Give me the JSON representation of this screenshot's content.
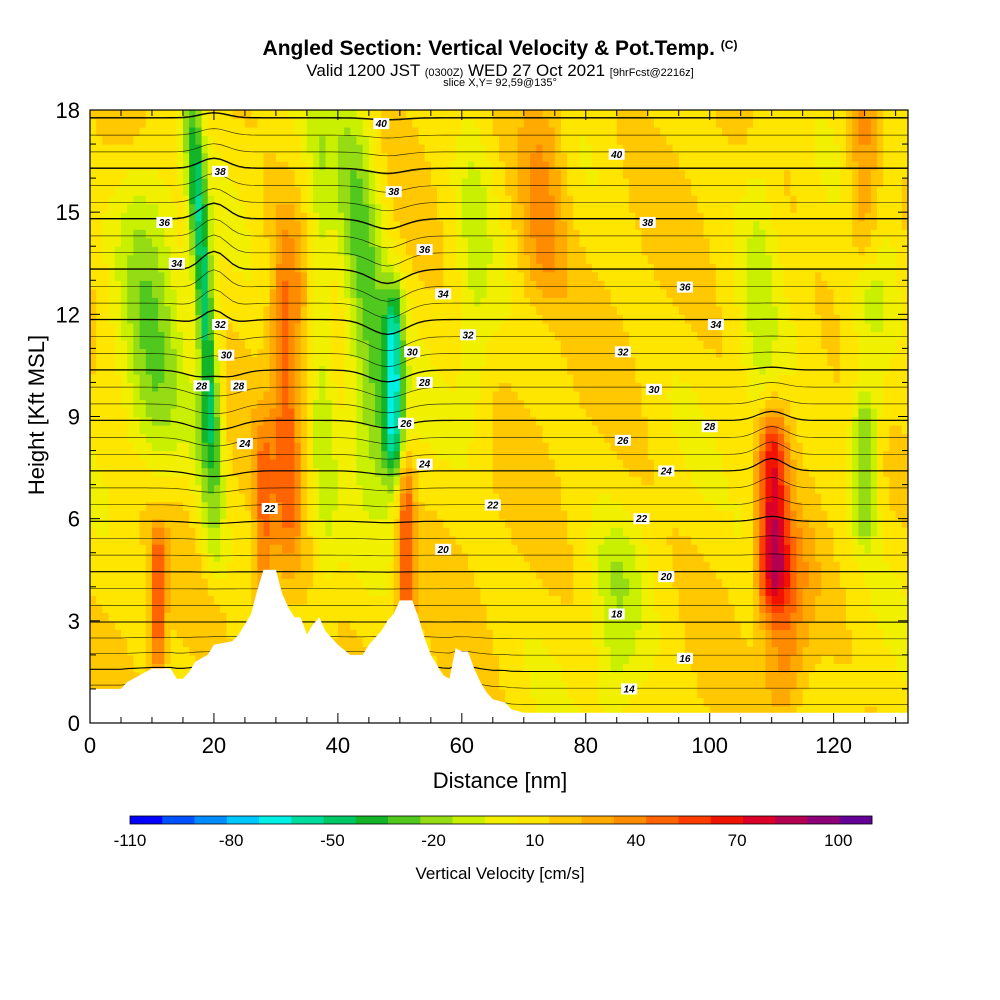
{
  "title": {
    "main": "Angled Section: Vertical Velocity & Pot.Temp.",
    "main_tag": "(C)",
    "sub_a": "Valid 1200 JST",
    "sub_b": "(0300Z)",
    "sub_c": "WED 27 Oct 2021",
    "sub_d": "[9hrFcst@2216z]",
    "slice": "slice X,Y= 92,59@135°"
  },
  "chart_data": {
    "type": "heatmap",
    "xlabel": "Distance [nm]",
    "ylabel": "Height [Kft MSL]",
    "xlim": [
      0,
      132
    ],
    "ylim": [
      0,
      18
    ],
    "x_ticks": [
      0,
      20,
      40,
      60,
      80,
      100,
      120
    ],
    "y_ticks": [
      0,
      3,
      6,
      9,
      12,
      15,
      18
    ],
    "vertical_velocity": {
      "label": "Vertical Velocity [cm/s]",
      "colorbar_tick_labels": [
        "-110",
        "-80",
        "-50",
        "-20",
        "10",
        "40",
        "70",
        "100"
      ],
      "colorbar_range": [
        -110,
        110
      ],
      "colorbar_colors": [
        "#0000ff",
        "#0050ff",
        "#008cff",
        "#00c8ff",
        "#00f0e6",
        "#00dc9c",
        "#00c864",
        "#14b428",
        "#50c81e",
        "#96dc14",
        "#c8f000",
        "#f0f000",
        "#ffe600",
        "#ffc800",
        "#ffaa00",
        "#ff8c00",
        "#ff6400",
        "#ff3c00",
        "#f01400",
        "#dc0028",
        "#b40050",
        "#8c0078",
        "#640096"
      ],
      "field_features": [
        {
          "center_x": 20,
          "base_z": 8,
          "top_z": 18,
          "tilt": 0.35,
          "width": 1.5,
          "value": -60
        },
        {
          "center_x": 11,
          "base_z": 8,
          "top_z": 16,
          "tilt": 0.3,
          "width": 5,
          "value": -30
        },
        {
          "center_x": 20,
          "base_z": 5,
          "top_z": 9,
          "tilt": 0.5,
          "width": 2,
          "value": -25
        },
        {
          "center_x": 47,
          "base_z": 7,
          "top_z": 18,
          "tilt": 0.45,
          "width": 4,
          "value": -40
        },
        {
          "center_x": 49,
          "base_z": 8,
          "top_z": 12,
          "tilt": 0,
          "width": 1.5,
          "value": -60
        },
        {
          "center_x": 32,
          "base_z": 5,
          "top_z": 14,
          "tilt": 0.05,
          "width": 2.5,
          "value": 35
        },
        {
          "center_x": 28,
          "base_z": 3,
          "top_z": 8,
          "tilt": 0,
          "width": 1.5,
          "value": 30
        },
        {
          "center_x": 11,
          "base_z": 2,
          "top_z": 5,
          "tilt": 0,
          "width": 1.2,
          "value": 40
        },
        {
          "center_x": 51,
          "base_z": 3,
          "top_z": 7,
          "tilt": 0,
          "width": 1.3,
          "value": 45
        },
        {
          "center_x": 110,
          "base_z": 4,
          "top_z": 8.5,
          "tilt": 0,
          "width": 2.5,
          "value": 65
        },
        {
          "center_x": 112,
          "base_z": 1,
          "top_z": 5,
          "tilt": 0,
          "width": 4,
          "value": 30
        },
        {
          "center_x": 125,
          "base_z": 6,
          "top_z": 9,
          "tilt": 0,
          "width": 2,
          "value": -35
        },
        {
          "center_x": 126,
          "base_z": 9,
          "top_z": 18,
          "tilt": 0,
          "width": 4,
          "value": -20
        },
        {
          "center_x": 85,
          "base_z": 0.5,
          "top_z": 5,
          "tilt": 0,
          "width": 4,
          "value": -20
        },
        {
          "center_x": 108,
          "base_z": 2,
          "top_z": 18,
          "tilt": 0,
          "width": 3,
          "value": -15
        },
        {
          "center_x": 73,
          "base_z": 13,
          "top_z": 18,
          "tilt": 0,
          "width": 4,
          "value": 25
        },
        {
          "center_x": 125,
          "base_z": 14,
          "top_z": 18,
          "tilt": 0,
          "width": 3,
          "value": 40
        },
        {
          "center_x": 62,
          "base_z": 9,
          "top_z": 18,
          "tilt": 0,
          "width": 3,
          "value": -15
        },
        {
          "center_x": 38,
          "base_z": 5,
          "top_z": 18,
          "tilt": 0.1,
          "width": 2,
          "value": -20
        }
      ]
    },
    "potential_temperature": {
      "contour_levels": [
        14,
        16,
        18,
        20,
        22,
        24,
        26,
        28,
        30,
        32,
        34,
        36,
        38,
        40
      ],
      "contour_labels": [
        {
          "text": "40",
          "x": 47,
          "z": 17.6
        },
        {
          "text": "40",
          "x": 85,
          "z": 16.7
        },
        {
          "text": "38",
          "x": 21,
          "z": 16.2
        },
        {
          "text": "38",
          "x": 49,
          "z": 15.6
        },
        {
          "text": "38",
          "x": 90,
          "z": 14.7
        },
        {
          "text": "36",
          "x": 12,
          "z": 14.7
        },
        {
          "text": "36",
          "x": 54,
          "z": 13.9
        },
        {
          "text": "36",
          "x": 96,
          "z": 12.8
        },
        {
          "text": "34",
          "x": 14,
          "z": 13.5
        },
        {
          "text": "34",
          "x": 57,
          "z": 12.6
        },
        {
          "text": "34",
          "x": 101,
          "z": 11.7
        },
        {
          "text": "32",
          "x": 21,
          "z": 11.7
        },
        {
          "text": "32",
          "x": 61,
          "z": 11.4
        },
        {
          "text": "32",
          "x": 86,
          "z": 10.9
        },
        {
          "text": "30",
          "x": 22,
          "z": 10.8
        },
        {
          "text": "30",
          "x": 52,
          "z": 10.9
        },
        {
          "text": "30",
          "x": 91,
          "z": 9.8
        },
        {
          "text": "28",
          "x": 18,
          "z": 9.9
        },
        {
          "text": "28",
          "x": 24,
          "z": 9.9
        },
        {
          "text": "28",
          "x": 54,
          "z": 10.0
        },
        {
          "text": "28",
          "x": 100,
          "z": 8.7
        },
        {
          "text": "26",
          "x": 51,
          "z": 8.8
        },
        {
          "text": "26",
          "x": 86,
          "z": 8.3
        },
        {
          "text": "24",
          "x": 25,
          "z": 8.2
        },
        {
          "text": "24",
          "x": 54,
          "z": 7.6
        },
        {
          "text": "24",
          "x": 93,
          "z": 7.4
        },
        {
          "text": "22",
          "x": 29,
          "z": 6.3
        },
        {
          "text": "22",
          "x": 65,
          "z": 6.4
        },
        {
          "text": "22",
          "x": 89,
          "z": 6.0
        },
        {
          "text": "20",
          "x": 57,
          "z": 5.1
        },
        {
          "text": "20",
          "x": 93,
          "z": 4.3
        },
        {
          "text": "18",
          "x": 85,
          "z": 3.2
        },
        {
          "text": "16",
          "x": 96,
          "z": 1.9
        },
        {
          "text": "14",
          "x": 87,
          "z": 1.0
        }
      ]
    },
    "terrain_profile_kft": [
      [
        0,
        1.0
      ],
      [
        5,
        1.0
      ],
      [
        6,
        1.2
      ],
      [
        7,
        1.3
      ],
      [
        9,
        1.5
      ],
      [
        10,
        1.6
      ],
      [
        13,
        1.6
      ],
      [
        14,
        1.3
      ],
      [
        15,
        1.3
      ],
      [
        16,
        1.5
      ],
      [
        17,
        1.8
      ],
      [
        19,
        2.0
      ],
      [
        20,
        2.3
      ],
      [
        23,
        2.4
      ],
      [
        24,
        2.6
      ],
      [
        25,
        2.9
      ],
      [
        26,
        3.2
      ],
      [
        27,
        3.9
      ],
      [
        28,
        4.5
      ],
      [
        30,
        4.5
      ],
      [
        31,
        3.8
      ],
      [
        32,
        3.4
      ],
      [
        33,
        3.1
      ],
      [
        34,
        3.1
      ],
      [
        35,
        2.6
      ],
      [
        36,
        2.9
      ],
      [
        37,
        3.1
      ],
      [
        38,
        2.7
      ],
      [
        39,
        2.5
      ],
      [
        40,
        2.3
      ],
      [
        42,
        2.0
      ],
      [
        44,
        2.0
      ],
      [
        45,
        2.3
      ],
      [
        47,
        2.7
      ],
      [
        48,
        3.0
      ],
      [
        49,
        3.2
      ],
      [
        50,
        3.6
      ],
      [
        52,
        3.6
      ],
      [
        53,
        3.1
      ],
      [
        54,
        2.5
      ],
      [
        55,
        2.0
      ],
      [
        56,
        1.7
      ],
      [
        57,
        1.4
      ],
      [
        58,
        1.3
      ],
      [
        59,
        2.2
      ],
      [
        60,
        2.1
      ],
      [
        61,
        2.1
      ],
      [
        62,
        1.6
      ],
      [
        63,
        1.2
      ],
      [
        64,
        0.9
      ],
      [
        65,
        0.7
      ],
      [
        67,
        0.6
      ],
      [
        68,
        0.4
      ],
      [
        70,
        0.3
      ],
      [
        132,
        0.3
      ]
    ]
  }
}
